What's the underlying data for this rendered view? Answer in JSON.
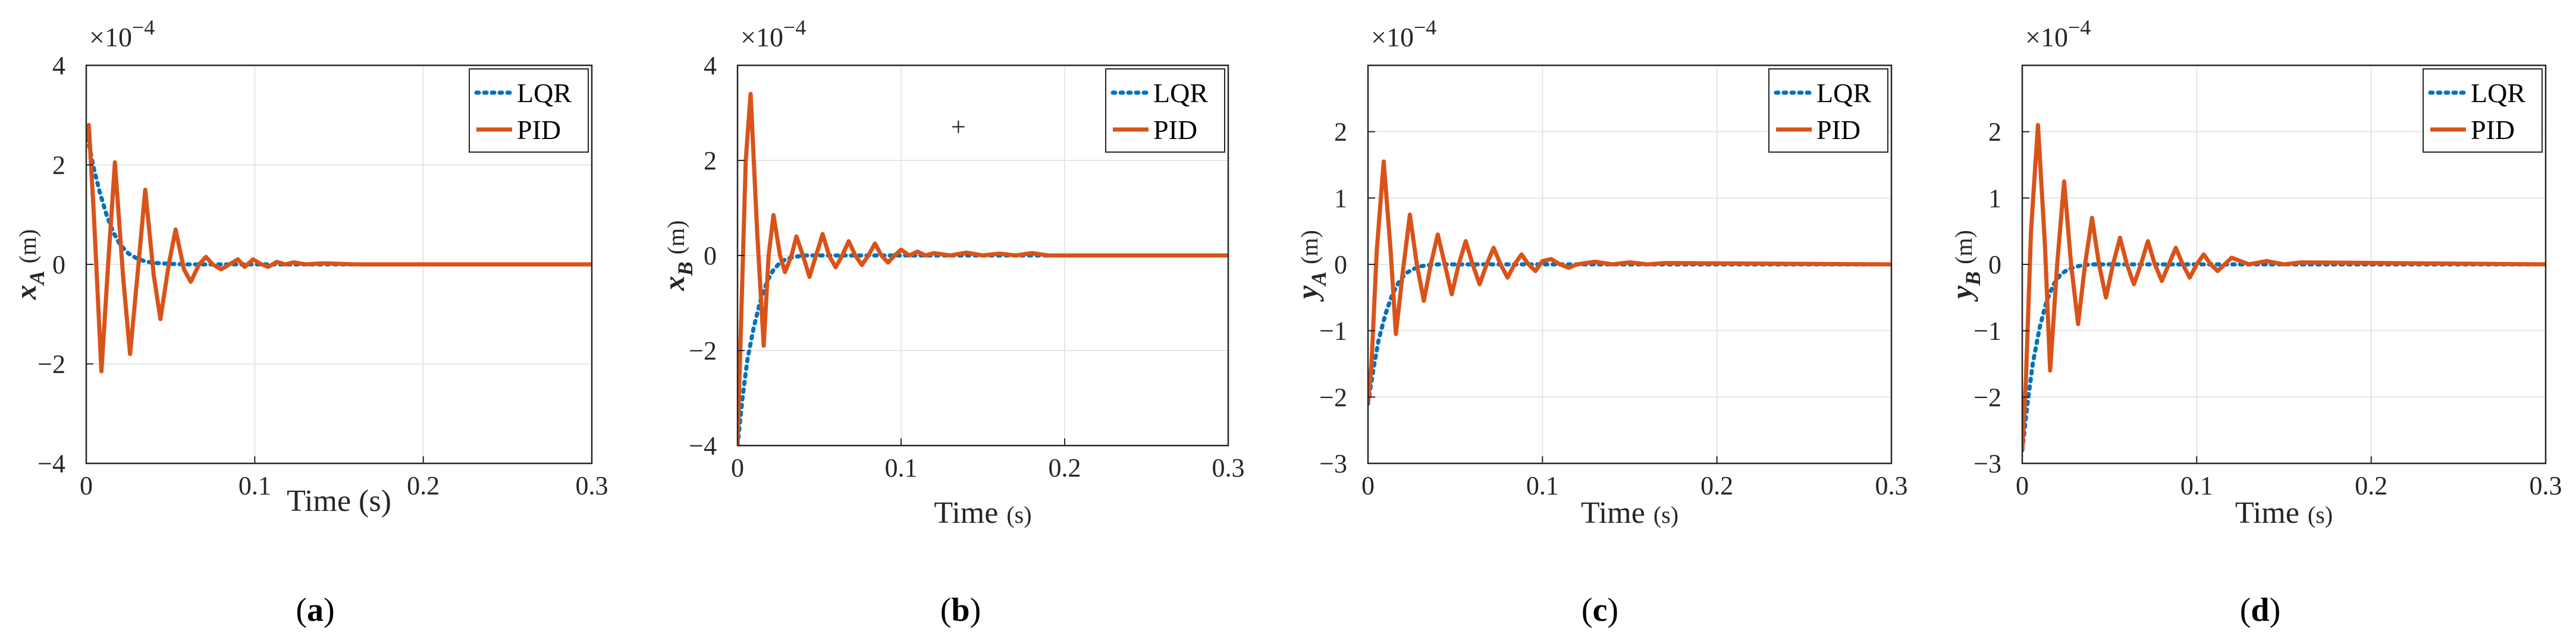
{
  "chart_data": [
    {
      "type": "line",
      "panel": "a",
      "caption": "a",
      "xlabel": "Time (s)",
      "ylabel": "x",
      "ylabel_sub": "A",
      "ylabel_unit": "(m)",
      "exponent_label": "×10^-4",
      "xlim": [
        0,
        0.3
      ],
      "ylim": [
        -4,
        4
      ],
      "xticks": [
        0,
        0.1,
        0.2,
        0.3
      ],
      "xtick_labels": [
        "0",
        "0.1",
        "0.2",
        "0.3"
      ],
      "yticks": [
        -4,
        -2,
        0,
        2,
        4
      ],
      "ytick_labels": [
        "-4",
        "-2",
        "0",
        "2",
        "4"
      ],
      "grid": true,
      "legend": "top-right",
      "series": [
        {
          "name": "LQR",
          "color": "#0072BD",
          "style": "dotted",
          "x": [
            0,
            0.004,
            0.008,
            0.012,
            0.016,
            0.02,
            0.025,
            0.03,
            0.035,
            0.04,
            0.05,
            0.06,
            0.08,
            0.1,
            0.3
          ],
          "y": [
            2.7,
            2.0,
            1.45,
            1.0,
            0.65,
            0.4,
            0.22,
            0.12,
            0.06,
            0.03,
            0.01,
            0,
            0,
            0,
            0
          ]
        },
        {
          "name": "PID",
          "color": "#D95319",
          "style": "solid",
          "x": [
            0,
            0.0015,
            0.0045,
            0.009,
            0.013,
            0.017,
            0.022,
            0.026,
            0.031,
            0.035,
            0.04,
            0.044,
            0.049,
            0.053,
            0.058,
            0.062,
            0.067,
            0.071,
            0.075,
            0.08,
            0.085,
            0.09,
            0.094,
            0.099,
            0.104,
            0.108,
            0.113,
            0.118,
            0.123,
            0.13,
            0.14,
            0.16,
            0.3
          ],
          "y": [
            2.5,
            2.8,
            1.0,
            -2.15,
            0.0,
            2.05,
            -0.3,
            -1.8,
            0.0,
            1.5,
            -0.2,
            -1.1,
            0.0,
            0.7,
            -0.1,
            -0.35,
            0.0,
            0.15,
            0.0,
            -0.1,
            0.0,
            0.1,
            -0.05,
            0.1,
            0.0,
            -0.05,
            0.05,
            0.0,
            0.04,
            0.0,
            0.02,
            0.0,
            0.0
          ]
        }
      ]
    },
    {
      "type": "line",
      "panel": "b",
      "caption": "b",
      "xlabel": "Time",
      "xlabel_unit": "(s)",
      "ylabel": "x",
      "ylabel_sub": "B",
      "ylabel_unit": "(m)",
      "exponent_label": "×10^-4",
      "xlim": [
        0,
        0.3
      ],
      "ylim": [
        -4,
        4
      ],
      "xticks": [
        0,
        0.1,
        0.2,
        0.3
      ],
      "xtick_labels": [
        "0",
        "0.1",
        "0.2",
        "0.3"
      ],
      "yticks": [
        -4,
        -2,
        0,
        2,
        4
      ],
      "ytick_labels": [
        "-4",
        "-2",
        "0",
        "2",
        "4"
      ],
      "grid": true,
      "legend": "top-right",
      "annotation": "+",
      "annotation_pos": [
        0.135,
        2.7
      ],
      "series": [
        {
          "name": "LQR",
          "color": "#0072BD",
          "style": "dotted",
          "x": [
            0,
            0.003,
            0.006,
            0.01,
            0.014,
            0.018,
            0.022,
            0.026,
            0.03,
            0.035,
            0.04,
            0.05,
            0.06,
            0.3
          ],
          "y": [
            -4.0,
            -3.0,
            -2.2,
            -1.5,
            -0.95,
            -0.55,
            -0.3,
            -0.15,
            -0.07,
            -0.03,
            0,
            0,
            0,
            0
          ]
        },
        {
          "name": "PID",
          "color": "#D95319",
          "style": "solid",
          "x": [
            0,
            0.0025,
            0.005,
            0.008,
            0.012,
            0.016,
            0.019,
            0.022,
            0.026,
            0.029,
            0.033,
            0.036,
            0.04,
            0.044,
            0.048,
            0.052,
            0.056,
            0.06,
            0.064,
            0.068,
            0.072,
            0.076,
            0.08,
            0.084,
            0.088,
            0.092,
            0.096,
            0.1,
            0.105,
            0.11,
            0.115,
            0.12,
            0.13,
            0.14,
            0.15,
            0.16,
            0.17,
            0.18,
            0.19,
            0.3
          ],
          "y": [
            -4.0,
            -1.0,
            2.0,
            3.4,
            0.5,
            -1.9,
            0.0,
            0.85,
            0.0,
            -0.35,
            0.0,
            0.4,
            0.0,
            -0.45,
            0.0,
            0.45,
            0.0,
            -0.25,
            0.0,
            0.3,
            0.0,
            -0.2,
            0.0,
            0.25,
            0.0,
            -0.15,
            0.0,
            0.12,
            0.0,
            0.08,
            0.0,
            0.05,
            0.0,
            0.06,
            0.0,
            0.04,
            0.0,
            0.05,
            0.0,
            0.0
          ]
        }
      ]
    },
    {
      "type": "line",
      "panel": "c",
      "caption": "c",
      "xlabel": "Time",
      "xlabel_unit": "(s)",
      "ylabel": "y",
      "ylabel_sub": "A",
      "ylabel_unit": "(m)",
      "exponent_label": "×10^-4",
      "xlim": [
        0,
        0.3
      ],
      "ylim": [
        -3,
        3
      ],
      "xticks": [
        0,
        0.1,
        0.2,
        0.3
      ],
      "xtick_labels": [
        "0",
        "0.1",
        "0.2",
        "0.3"
      ],
      "yticks": [
        -3,
        -2,
        -1,
        0,
        1,
        2
      ],
      "ytick_labels": [
        "-3",
        "-2",
        "-1",
        "0",
        "1",
        "2"
      ],
      "grid": true,
      "legend": "top-right",
      "series": [
        {
          "name": "LQR",
          "color": "#0072BD",
          "style": "dotted",
          "x": [
            0,
            0.003,
            0.006,
            0.01,
            0.014,
            0.018,
            0.022,
            0.026,
            0.03,
            0.035,
            0.04,
            0.05,
            0.06,
            0.3
          ],
          "y": [
            -2.1,
            -1.6,
            -1.15,
            -0.75,
            -0.45,
            -0.25,
            -0.13,
            -0.07,
            -0.03,
            -0.01,
            0,
            0,
            0,
            0
          ]
        },
        {
          "name": "PID",
          "color": "#D95319",
          "style": "solid",
          "x": [
            0,
            0.002,
            0.005,
            0.009,
            0.013,
            0.016,
            0.02,
            0.024,
            0.028,
            0.032,
            0.036,
            0.04,
            0.044,
            0.048,
            0.052,
            0.056,
            0.06,
            0.064,
            0.068,
            0.072,
            0.076,
            0.08,
            0.084,
            0.088,
            0.092,
            0.096,
            0.1,
            0.105,
            0.11,
            0.115,
            0.12,
            0.13,
            0.14,
            0.15,
            0.16,
            0.17,
            0.3
          ],
          "y": [
            -2.1,
            -1.5,
            0.2,
            1.55,
            0.2,
            -1.05,
            -0.1,
            0.75,
            0.0,
            -0.55,
            0.0,
            0.45,
            0.0,
            -0.45,
            0.0,
            0.35,
            0.0,
            -0.3,
            0.0,
            0.25,
            0.0,
            -0.2,
            0.0,
            0.15,
            0.0,
            -0.1,
            0.05,
            0.08,
            0.0,
            -0.05,
            0.0,
            0.04,
            0.0,
            0.03,
            0.0,
            0.02,
            0.0
          ]
        }
      ]
    },
    {
      "type": "line",
      "panel": "d",
      "caption": "d",
      "xlabel": "Time",
      "xlabel_unit": "(s)",
      "ylabel": "y",
      "ylabel_sub": "B",
      "ylabel_unit": "(m)",
      "exponent_label": "×10^-4",
      "xlim": [
        0,
        0.3
      ],
      "ylim": [
        -3,
        3
      ],
      "xticks": [
        0,
        0.1,
        0.2,
        0.3
      ],
      "xtick_labels": [
        "0",
        "0.1",
        "0.2",
        "0.3"
      ],
      "yticks": [
        -3,
        -2,
        -1,
        0,
        1,
        2
      ],
      "ytick_labels": [
        "-3",
        "-2",
        "-1",
        "0",
        "1",
        "2"
      ],
      "grid": true,
      "legend": "top-right",
      "series": [
        {
          "name": "LQR",
          "color": "#0072BD",
          "style": "dotted",
          "x": [
            0,
            0.003,
            0.006,
            0.01,
            0.014,
            0.018,
            0.022,
            0.026,
            0.03,
            0.035,
            0.04,
            0.05,
            0.06,
            0.3
          ],
          "y": [
            -2.8,
            -2.1,
            -1.5,
            -0.95,
            -0.55,
            -0.3,
            -0.15,
            -0.08,
            -0.04,
            -0.01,
            0,
            0,
            0,
            0
          ]
        },
        {
          "name": "PID",
          "color": "#D95319",
          "style": "solid",
          "x": [
            0,
            0.002,
            0.005,
            0.009,
            0.013,
            0.016,
            0.02,
            0.024,
            0.028,
            0.032,
            0.036,
            0.04,
            0.044,
            0.048,
            0.052,
            0.056,
            0.06,
            0.064,
            0.068,
            0.072,
            0.076,
            0.08,
            0.084,
            0.088,
            0.092,
            0.096,
            0.1,
            0.104,
            0.108,
            0.112,
            0.116,
            0.12,
            0.13,
            0.14,
            0.15,
            0.16,
            0.3
          ],
          "y": [
            -2.8,
            -1.8,
            0.5,
            2.1,
            0.3,
            -1.6,
            0.0,
            1.25,
            0.0,
            -0.9,
            0.0,
            0.7,
            0.0,
            -0.5,
            0.0,
            0.4,
            0.0,
            -0.3,
            0.0,
            0.35,
            0.0,
            -0.25,
            0.0,
            0.25,
            0.0,
            -0.2,
            0.0,
            0.15,
            0.0,
            -0.1,
            0.0,
            0.1,
            0.0,
            0.05,
            0.0,
            0.03,
            0.0
          ]
        }
      ]
    }
  ]
}
